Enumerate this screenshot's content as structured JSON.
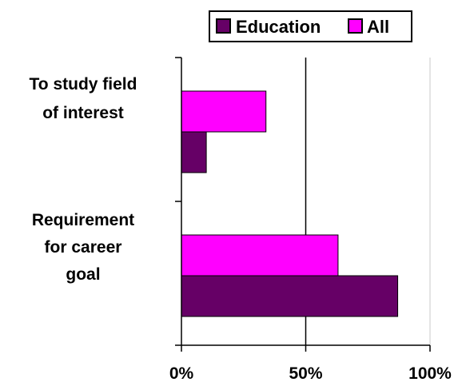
{
  "chart_data": {
    "type": "bar",
    "orientation": "horizontal",
    "title": "",
    "xlabel": "",
    "ylabel": "",
    "categories": [
      [
        "To study field",
        "of interest"
      ],
      [
        "Requirement",
        "for career",
        "goal"
      ]
    ],
    "series": [
      {
        "name": "Education",
        "color": "#660066",
        "values": [
          10,
          87
        ]
      },
      {
        "name": "All",
        "color": "#ff00ff",
        "values": [
          34,
          63
        ]
      }
    ],
    "xlim": [
      0,
      100
    ],
    "x_ticks": [
      0,
      50,
      100
    ],
    "x_tick_labels": [
      "0%",
      "50%",
      "100%"
    ],
    "grid": true,
    "legend": {
      "position": "top",
      "items": [
        "Education",
        "All"
      ]
    }
  }
}
